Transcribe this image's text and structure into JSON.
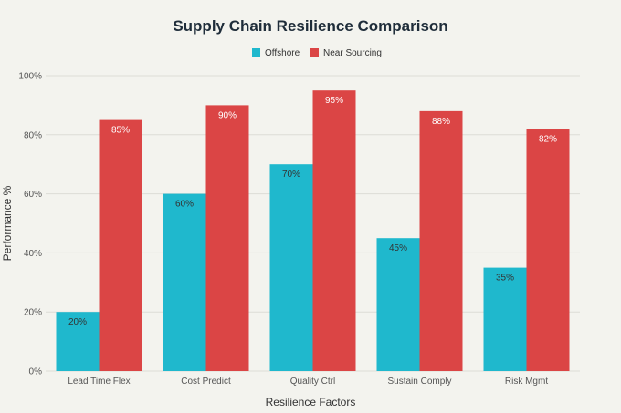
{
  "chart_data": {
    "type": "bar",
    "title": "Supply Chain Resilience Comparison",
    "xlabel": "Resilience Factors",
    "ylabel": "Performance %",
    "ylim": [
      0,
      100
    ],
    "yticks": [
      0,
      20,
      40,
      60,
      80,
      100
    ],
    "ytick_suffix": "%",
    "grid": true,
    "legend_position": "top-center",
    "categories": [
      "Lead Time Flex",
      "Cost Predict",
      "Quality Ctrl",
      "Sustain Comply",
      "Risk Mgmt"
    ],
    "series": [
      {
        "name": "Offshore",
        "color": "#1fb8cd",
        "label_color": "#333333",
        "values": [
          20,
          60,
          70,
          45,
          35
        ]
      },
      {
        "name": "Near Sourcing",
        "color": "#db4545",
        "label_color": "#ffffff",
        "values": [
          85,
          90,
          95,
          88,
          82
        ]
      }
    ]
  }
}
